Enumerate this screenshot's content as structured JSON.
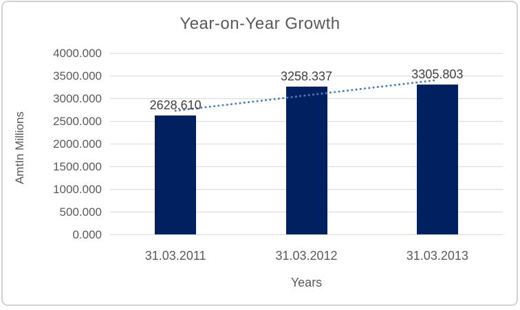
{
  "chart_data": {
    "type": "bar",
    "title": "Year-on-Year Growth",
    "xlabel": "Years",
    "ylabel": "AmtIn Millions",
    "categories": [
      "31.03.2011",
      "31.03.2012",
      "31.03.2013"
    ],
    "values": [
      2628.61,
      3258.337,
      3305.803
    ],
    "data_labels": [
      "2628.610",
      "3258.337",
      "3305.803"
    ],
    "ylim": [
      0,
      4000
    ],
    "ytick_step": 500,
    "ytick_labels": [
      "4000.000",
      "3500.000",
      "3000.000",
      "2500.000",
      "2000.000",
      "1500.000",
      "1000.000",
      "500.000",
      "0.000"
    ],
    "grid": true,
    "legend": "none",
    "trendline": {
      "type": "linear",
      "style": "dotted",
      "fit_values_at_categories": [
        2725.7,
        3064.3,
        3402.9
      ]
    },
    "colors": {
      "bar": "#002060",
      "trendline": "#4a7ebb",
      "gridline": "#d9d9d9",
      "axis_text": "#595959",
      "title_text": "#595959",
      "data_label_text": "#3f3f3f",
      "frame_border": "#d2d2d2",
      "background": "#ffffff"
    }
  }
}
